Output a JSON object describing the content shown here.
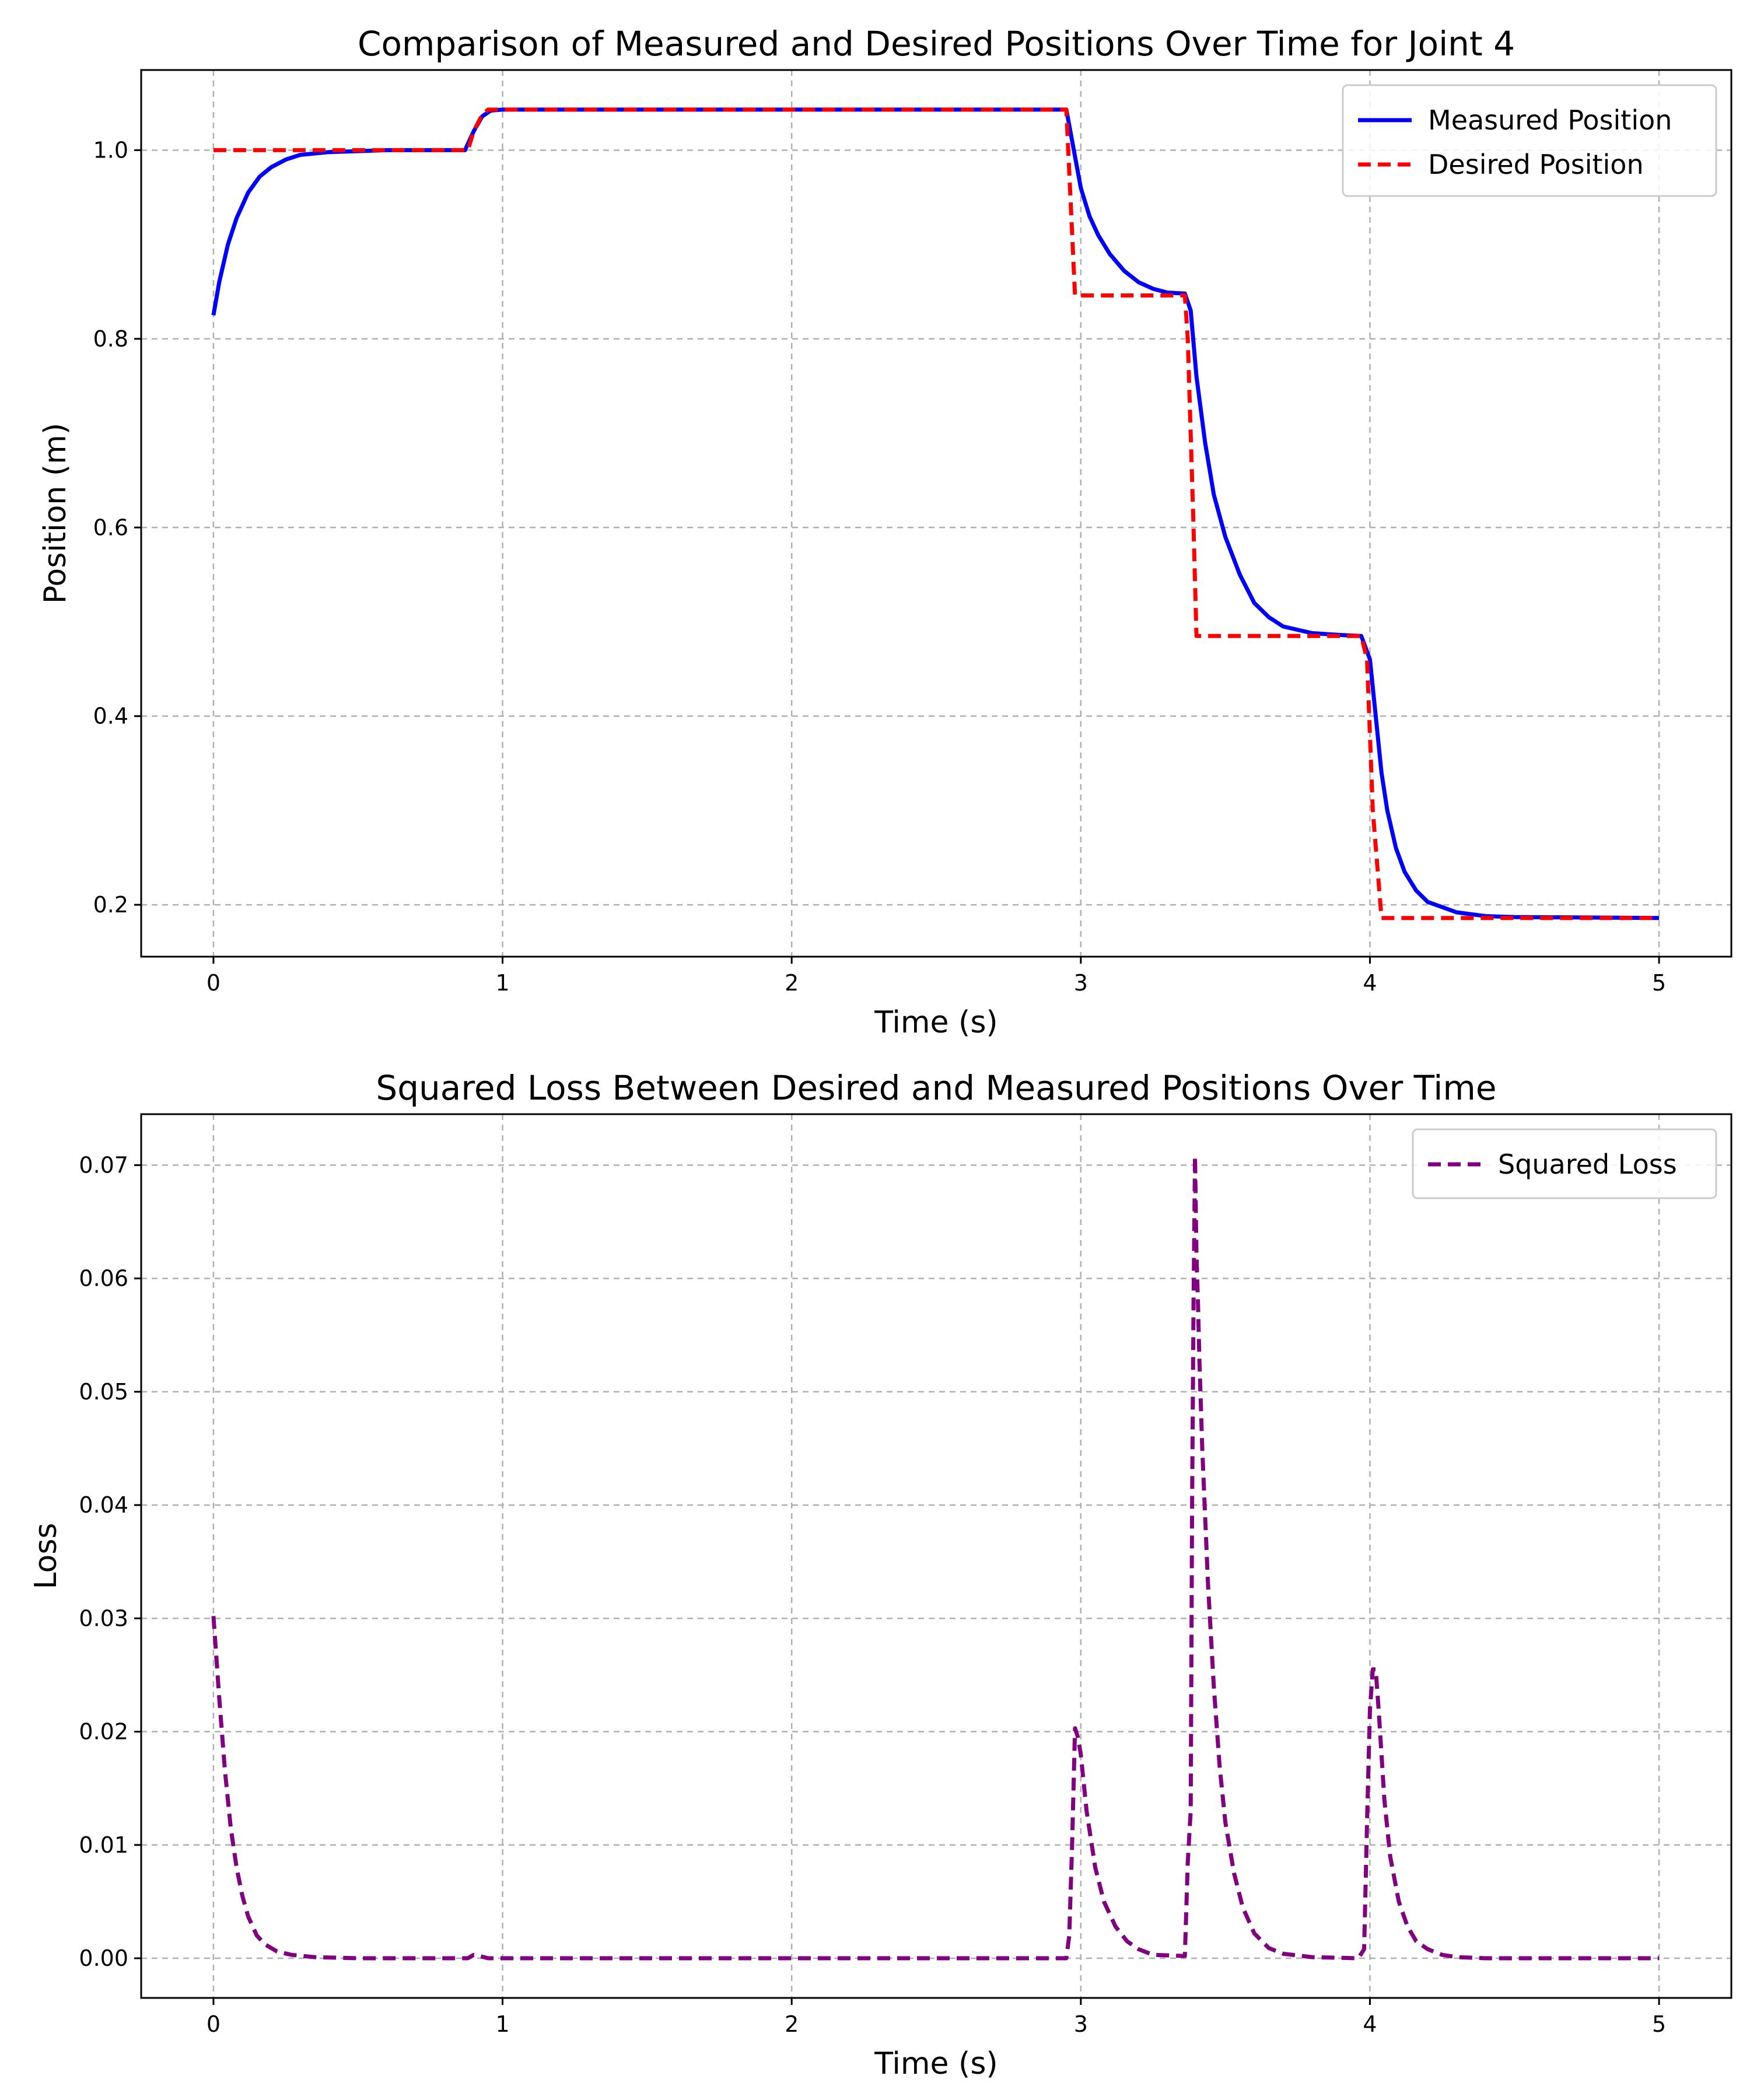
{
  "chart_data": [
    {
      "type": "line",
      "title": "Comparison of Measured and Desired Positions Over Time for Joint 4",
      "xlabel": "Time (s)",
      "ylabel": "Position (m)",
      "xlim": [
        -0.25,
        5.25
      ],
      "ylim": [
        0.145,
        1.085
      ],
      "xticks": [
        0,
        1,
        2,
        3,
        4,
        5
      ],
      "xtick_labels": [
        "0",
        "1",
        "2",
        "3",
        "4",
        "5"
      ],
      "yticks": [
        0.2,
        0.4,
        0.6,
        0.8,
        1.0
      ],
      "ytick_labels": [
        "0.2",
        "0.4",
        "0.6",
        "0.8",
        "1.0"
      ],
      "grid": true,
      "legend_position": "top-right",
      "series": [
        {
          "name": "Measured Position",
          "color": "#0000ff",
          "style": "solid",
          "x": [
            0,
            0.02,
            0.05,
            0.08,
            0.12,
            0.16,
            0.2,
            0.25,
            0.3,
            0.4,
            0.5,
            0.6,
            0.7,
            0.8,
            0.87,
            0.9,
            0.93,
            0.96,
            1.0,
            2.0,
            2.95,
            2.97,
            3.0,
            3.03,
            3.06,
            3.1,
            3.15,
            3.2,
            3.25,
            3.3,
            3.36,
            3.38,
            3.4,
            3.43,
            3.46,
            3.5,
            3.55,
            3.6,
            3.65,
            3.7,
            3.8,
            3.9,
            3.97,
            4.0,
            4.02,
            4.04,
            4.06,
            4.09,
            4.12,
            4.16,
            4.2,
            4.3,
            4.4,
            4.5,
            5.0
          ],
          "y": [
            0.825,
            0.86,
            0.9,
            0.928,
            0.955,
            0.972,
            0.982,
            0.99,
            0.995,
            0.998,
            0.999,
            1.0,
            1.0,
            1.0,
            1.0,
            1.02,
            1.036,
            1.042,
            1.043,
            1.043,
            1.043,
            1.01,
            0.96,
            0.93,
            0.91,
            0.89,
            0.872,
            0.86,
            0.853,
            0.849,
            0.848,
            0.83,
            0.76,
            0.69,
            0.635,
            0.59,
            0.55,
            0.52,
            0.505,
            0.495,
            0.488,
            0.486,
            0.485,
            0.46,
            0.4,
            0.34,
            0.3,
            0.26,
            0.235,
            0.215,
            0.203,
            0.192,
            0.188,
            0.187,
            0.186
          ]
        },
        {
          "name": "Desired Position",
          "color": "#ff0000",
          "style": "dashed",
          "x": [
            0,
            0.88,
            0.9,
            0.93,
            0.95,
            2.95,
            2.98,
            3.36,
            3.37,
            3.39,
            3.4,
            3.97,
            3.99,
            4.01,
            4.04,
            5.0
          ],
          "y": [
            1.0,
            1.0,
            1.02,
            1.038,
            1.043,
            1.043,
            0.846,
            0.846,
            0.8,
            0.6,
            0.485,
            0.485,
            0.46,
            0.3,
            0.186,
            0.186
          ]
        }
      ]
    },
    {
      "type": "line",
      "title": "Squared Loss Between Desired and Measured Positions Over Time",
      "xlabel": "Time (s)",
      "ylabel": "Loss",
      "xlim": [
        -0.25,
        5.25
      ],
      "ylim": [
        -0.0035,
        0.0745
      ],
      "xticks": [
        0,
        1,
        2,
        3,
        4,
        5
      ],
      "xtick_labels": [
        "0",
        "1",
        "2",
        "3",
        "4",
        "5"
      ],
      "yticks": [
        0.0,
        0.01,
        0.02,
        0.03,
        0.04,
        0.05,
        0.06,
        0.07
      ],
      "ytick_labels": [
        "0.00",
        "0.01",
        "0.02",
        "0.03",
        "0.04",
        "0.05",
        "0.06",
        "0.07"
      ],
      "grid": true,
      "legend_position": "top-right",
      "series": [
        {
          "name": "Squared Loss",
          "color": "#800080",
          "style": "dashed",
          "x": [
            0,
            0.02,
            0.04,
            0.06,
            0.08,
            0.1,
            0.12,
            0.15,
            0.18,
            0.22,
            0.27,
            0.35,
            0.5,
            0.88,
            0.9,
            0.92,
            0.95,
            2.95,
            2.96,
            2.97,
            2.98,
            2.99,
            3.0,
            3.02,
            3.05,
            3.08,
            3.12,
            3.16,
            3.2,
            3.25,
            3.36,
            3.37,
            3.38,
            3.385,
            3.39,
            3.395,
            3.4,
            3.405,
            3.41,
            3.42,
            3.44,
            3.46,
            3.48,
            3.5,
            3.53,
            3.56,
            3.6,
            3.65,
            3.7,
            3.8,
            3.96,
            3.98,
            3.99,
            4.0,
            4.01,
            4.02,
            4.03,
            4.04,
            4.05,
            4.07,
            4.1,
            4.13,
            4.16,
            4.2,
            4.25,
            4.3,
            4.4,
            5.0
          ],
          "y": [
            0.0302,
            0.023,
            0.0165,
            0.0115,
            0.008,
            0.0055,
            0.0037,
            0.002,
            0.0012,
            0.0006,
            0.0003,
            0.0001,
            0.0,
            0.0,
            0.0003,
            0.0002,
            0.0,
            0.0,
            0.002,
            0.01,
            0.0203,
            0.0195,
            0.018,
            0.013,
            0.008,
            0.005,
            0.0028,
            0.0015,
            0.0008,
            0.0003,
            0.0002,
            0.0085,
            0.013,
            0.04,
            0.058,
            0.0708,
            0.062,
            0.058,
            0.053,
            0.045,
            0.033,
            0.024,
            0.017,
            0.012,
            0.0075,
            0.0045,
            0.0022,
            0.0009,
            0.0004,
            0.0001,
            0.0,
            0.0008,
            0.012,
            0.022,
            0.0255,
            0.0255,
            0.022,
            0.018,
            0.014,
            0.009,
            0.005,
            0.0028,
            0.0015,
            0.0008,
            0.0003,
            0.0001,
            0.0,
            0.0
          ]
        }
      ]
    }
  ]
}
